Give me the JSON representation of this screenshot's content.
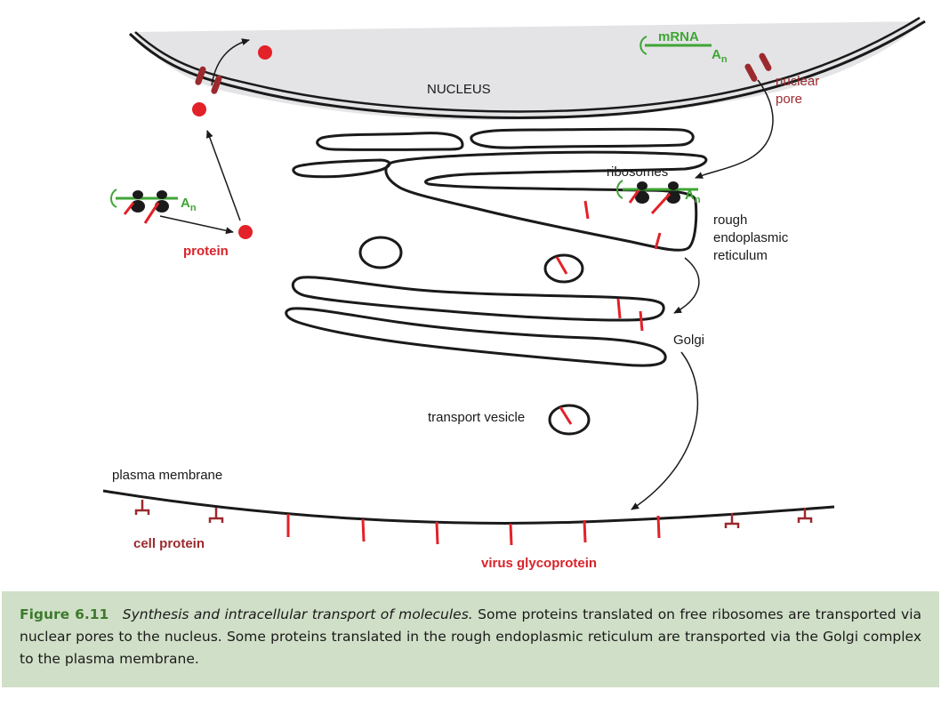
{
  "labels": {
    "nucleus": "NUCLEUS",
    "mrna": "mRNA",
    "poly_a_top_base": "A",
    "poly_a_top_sub": "n",
    "poly_a_left_base": "A",
    "poly_a_left_sub": "n",
    "poly_a_er_base": "A",
    "poly_a_er_sub": "n",
    "nuclear_pore_line1": "nuclear",
    "nuclear_pore_line2": "pore",
    "ribosomes": "ribosomes",
    "protein": "protein",
    "rough_er_line1": "rough",
    "rough_er_line2": "endoplasmic",
    "rough_er_line3": "reticulum",
    "golgi": "Golgi",
    "transport_vesicle": "transport vesicle",
    "plasma_membrane": "plasma membrane",
    "cell_protein": "cell protein",
    "virus_glycoprotein": "virus glycoprotein"
  },
  "caption": {
    "label": "Figure 6.11",
    "title": "Synthesis and intracellular transport of molecules.",
    "text": "Some proteins translated on free ribosomes are transported via nuclear pores to the nucleus. Some proteins translated in the rough endoplasmic reticulum are transported via the Golgi complex to the plasma membrane."
  },
  "colors": {
    "membrane": "#1a1a1a",
    "nucleus_fill": "#e4e4e6",
    "protein_red": "#e32128",
    "dark_red": "#9b2a2e",
    "mrna_green": "#3fa535",
    "caption_bg": "#d0dfc7"
  }
}
